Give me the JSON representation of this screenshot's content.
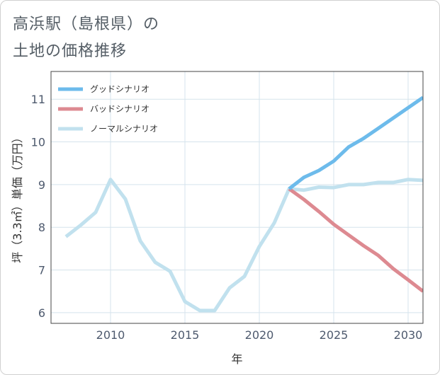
{
  "page": {
    "title_line1": "高浜駅（島根県）の",
    "title_line2": "土地の価格推移"
  },
  "chart_data": {
    "type": "line",
    "xlabel": "年",
    "ylabel": "坪（3.3㎡）単価（万円）",
    "xlim": [
      2006,
      2031
    ],
    "ylim": [
      5.75,
      11.65
    ],
    "xticks": [
      2010,
      2015,
      2020,
      2025,
      2030
    ],
    "yticks": [
      6,
      7,
      8,
      9,
      10,
      11
    ],
    "grid": true,
    "legend_position": "top-left",
    "series": [
      {
        "name": "グッドシナリオ",
        "color": "#6dbbeb",
        "x": [
          2022,
          2023,
          2024,
          2025,
          2026,
          2027,
          2028,
          2029,
          2030,
          2031
        ],
        "y": [
          8.9,
          9.17,
          9.33,
          9.55,
          9.88,
          10.08,
          10.32,
          10.56,
          10.8,
          11.04
        ]
      },
      {
        "name": "バッドシナリオ",
        "color": "#dd8a91",
        "x": [
          2022,
          2023,
          2024,
          2025,
          2026,
          2027,
          2028,
          2029,
          2030,
          2031
        ],
        "y": [
          8.9,
          8.65,
          8.37,
          8.07,
          7.82,
          7.57,
          7.34,
          7.03,
          6.77,
          6.5
        ]
      },
      {
        "name": "ノーマルシナリオ",
        "color": "#c1e1ee",
        "x": [
          2007,
          2008,
          2009,
          2010,
          2011,
          2012,
          2013,
          2014,
          2015,
          2016,
          2017,
          2018,
          2019,
          2020,
          2021,
          2022,
          2023,
          2024,
          2025,
          2026,
          2027,
          2028,
          2029,
          2030,
          2031
        ],
        "y": [
          7.78,
          8.05,
          8.35,
          9.12,
          8.66,
          7.68,
          7.18,
          6.97,
          6.26,
          6.05,
          6.05,
          6.58,
          6.85,
          7.55,
          8.1,
          8.9,
          8.87,
          8.94,
          8.93,
          9.0,
          9.0,
          9.05,
          9.05,
          9.12,
          9.1
        ]
      }
    ]
  }
}
